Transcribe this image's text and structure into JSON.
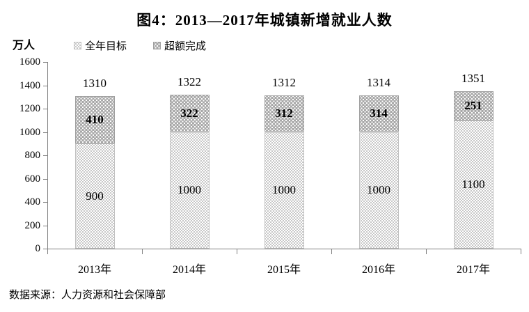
{
  "chart_data": {
    "type": "bar",
    "stacked": true,
    "title": "图4：2013—2017年城镇新增就业人数",
    "unit_label": "万人",
    "categories": [
      "2013年",
      "2014年",
      "2015年",
      "2016年",
      "2017年"
    ],
    "series": [
      {
        "name": "全年目标",
        "values": [
          900,
          1000,
          1000,
          1000,
          1100
        ]
      },
      {
        "name": "超额完成",
        "values": [
          410,
          322,
          312,
          314,
          251
        ]
      }
    ],
    "totals": [
      1310,
      1322,
      1312,
      1314,
      1351
    ],
    "ylim": [
      0,
      1600
    ],
    "yticks": [
      0,
      200,
      400,
      600,
      800,
      1000,
      1200,
      1400,
      1600
    ],
    "legend_position": "top-left",
    "grid": false,
    "source": "数据来源：人力资源和社会保障部",
    "colors": {
      "target_fill": "#ffffff",
      "target_dot": "#b4b4b4",
      "excess_fill": "#a8a8a8",
      "excess_dot": "#ffffff",
      "axis": "#808080",
      "text": "#000000"
    }
  }
}
